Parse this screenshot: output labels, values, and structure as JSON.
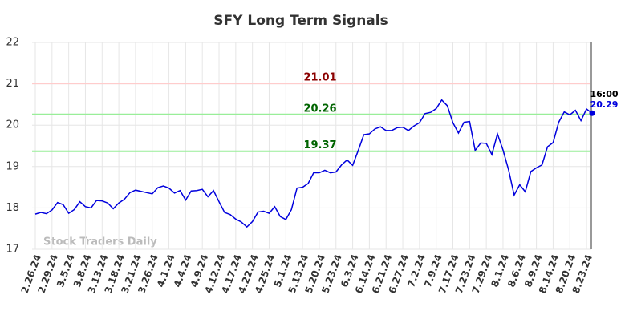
{
  "chart_data": {
    "type": "line",
    "title": "SFY Long Term Signals",
    "categories": [
      "2.26.24",
      null,
      null,
      "2.29.24",
      null,
      null,
      "3.5.24",
      null,
      null,
      "3.8.24",
      null,
      null,
      "3.13.24",
      null,
      null,
      "3.18.24",
      null,
      null,
      "3.21.24",
      null,
      null,
      "3.26.24",
      null,
      null,
      "4.1.24",
      null,
      null,
      "4.4.24",
      null,
      null,
      "4.9.24",
      null,
      null,
      "4.12.24",
      null,
      null,
      "4.17.24",
      null,
      null,
      "4.22.24",
      null,
      null,
      "4.25.24",
      null,
      null,
      "5.1.24",
      null,
      null,
      "5.13.24",
      null,
      null,
      "5.20.24",
      null,
      null,
      "5.23.24",
      null,
      null,
      "6.3.24",
      null,
      null,
      "6.14.24",
      null,
      null,
      "6.21.24",
      null,
      null,
      "6.27.24",
      null,
      null,
      "7.2.24",
      null,
      null,
      "7.9.24",
      null,
      null,
      "7.17.24",
      null,
      null,
      "7.23.24",
      null,
      null,
      "7.29.24",
      null,
      null,
      "8.1.24",
      null,
      null,
      "8.6.24",
      null,
      null,
      "8.9.24",
      null,
      null,
      "8.14.24",
      null,
      null,
      "8.20.24",
      null,
      null,
      "8.23.24",
      null
    ],
    "values": [
      17.85,
      17.89,
      17.86,
      17.95,
      18.13,
      18.08,
      17.87,
      17.96,
      18.15,
      18.03,
      18.0,
      18.18,
      18.17,
      18.12,
      17.98,
      18.12,
      18.21,
      18.37,
      18.43,
      18.4,
      18.37,
      18.34,
      18.49,
      18.53,
      18.48,
      18.36,
      18.42,
      18.19,
      18.41,
      18.42,
      18.45,
      18.27,
      18.42,
      18.15,
      17.89,
      17.84,
      17.73,
      17.66,
      17.54,
      17.67,
      17.9,
      17.92,
      17.87,
      18.03,
      17.79,
      17.72,
      17.96,
      18.48,
      18.5,
      18.59,
      18.85,
      18.85,
      18.91,
      18.85,
      18.87,
      19.04,
      19.16,
      19.03,
      19.39,
      19.77,
      19.79,
      19.91,
      19.96,
      19.87,
      19.87,
      19.94,
      19.95,
      19.87,
      19.98,
      20.06,
      20.28,
      20.31,
      20.4,
      20.61,
      20.47,
      20.06,
      19.81,
      20.07,
      20.09,
      19.39,
      19.57,
      19.56,
      19.29,
      19.79,
      19.4,
      18.92,
      18.31,
      18.56,
      18.39,
      18.88,
      18.97,
      19.04,
      19.48,
      19.58,
      20.07,
      20.32,
      20.25,
      20.36,
      20.11,
      20.39,
      20.29
    ],
    "color": "#0000dd",
    "ylim": [
      17,
      22
    ],
    "yticks": [
      17,
      18,
      19,
      20,
      21,
      22
    ],
    "grid": true,
    "levels": [
      {
        "value": 21.01,
        "color": "#ffcccc",
        "label_color": "#8b0000"
      },
      {
        "value": 20.26,
        "color": "#99ee99",
        "label_color": "#006400"
      },
      {
        "value": 19.37,
        "color": "#99ee99",
        "label_color": "#006400"
      }
    ],
    "time_label": "16:00",
    "watermark": "Stock Traders Daily"
  }
}
